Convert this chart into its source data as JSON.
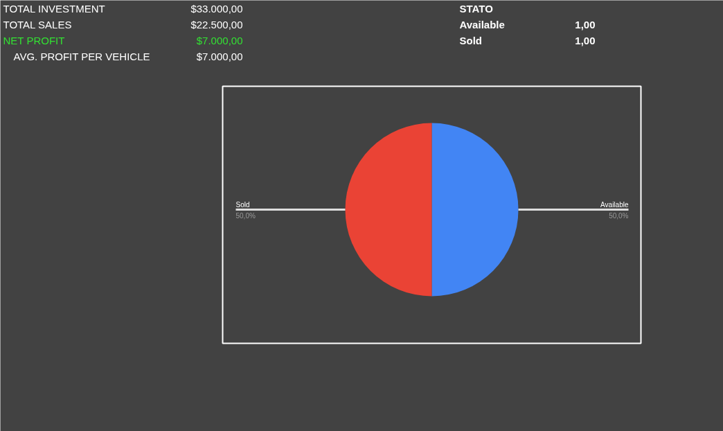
{
  "chart_data": {
    "type": "pie",
    "categories": [
      "Available",
      "Sold"
    ],
    "values": [
      50,
      50
    ],
    "colors": [
      "#4285f4",
      "#ea4335"
    ],
    "value_labels": [
      "50,0%",
      "50,0%"
    ],
    "annotations": [
      "TOTAL INVESTMENT",
      "$33.000,00",
      "TOTAL SALES",
      "$22.500,00",
      "NET PROFIT",
      "$7.000,00",
      "AVG. PROFIT PER VEHICLE",
      "$7.000,00",
      "STATO",
      "Available",
      "1,00",
      "Sold",
      "1,00"
    ]
  }
}
